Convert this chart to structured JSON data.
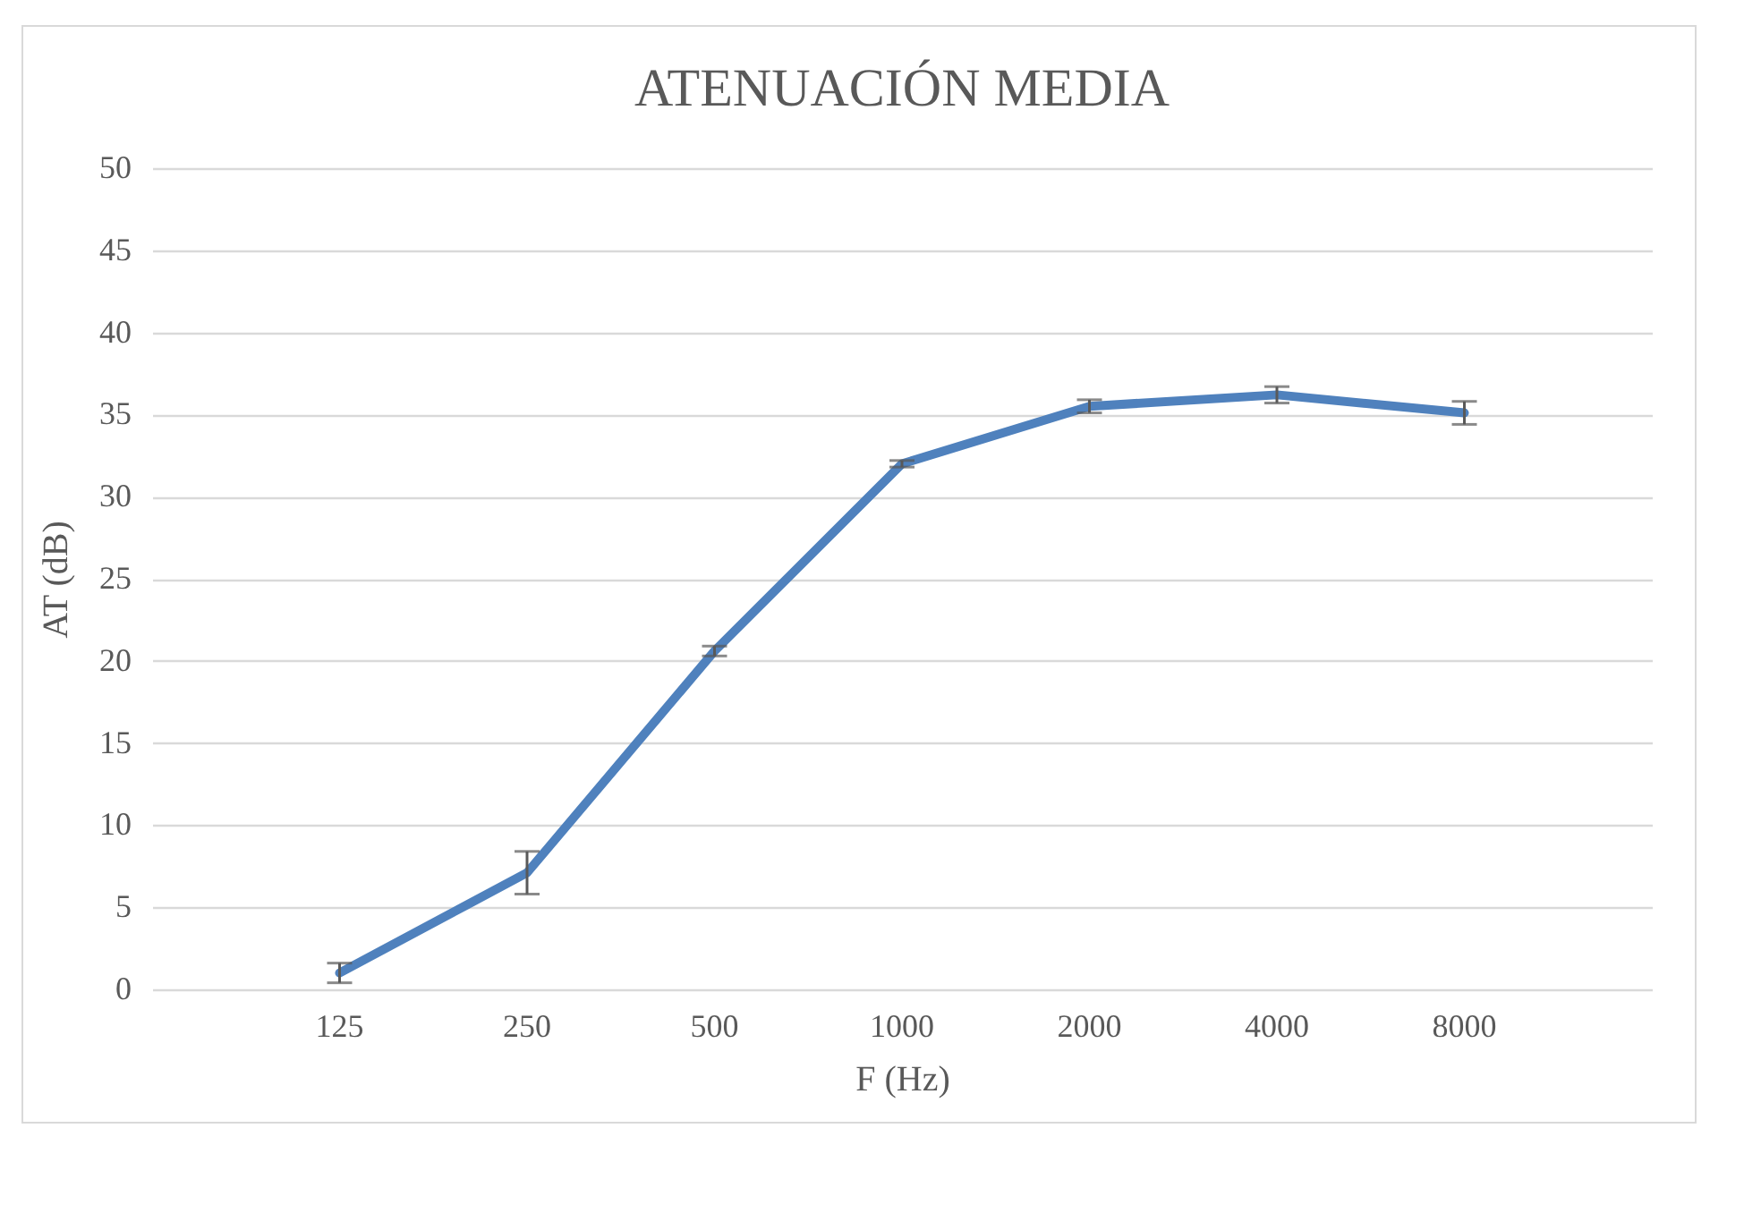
{
  "chart_data": {
    "type": "line",
    "title": "ATENUACIÓN MEDIA",
    "xlabel": "F (Hz)",
    "ylabel": "AT (dB)",
    "categories": [
      "125",
      "250",
      "500",
      "1000",
      "2000",
      "4000",
      "8000"
    ],
    "series": [
      {
        "color": "#4f81bd",
        "values": [
          1.0,
          7.1,
          20.6,
          32.0,
          35.5,
          36.2,
          35.1
        ],
        "errors": [
          0.6,
          1.3,
          0.3,
          0.2,
          0.4,
          0.5,
          0.7
        ]
      }
    ],
    "ylim": [
      0,
      50
    ],
    "yticks": [
      0,
      5,
      10,
      15,
      20,
      25,
      30,
      35,
      40,
      45,
      50
    ],
    "grid": "y",
    "marker": "none",
    "line_style": "solid",
    "legend": false
  }
}
